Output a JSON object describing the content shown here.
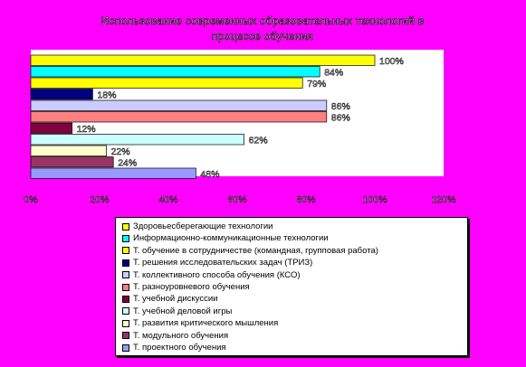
{
  "chart_data": {
    "type": "bar",
    "orientation": "horizontal",
    "title_line1": "Использование современных образовательных технологий в",
    "title_line2": "процессе обучения",
    "xlim": [
      0,
      120
    ],
    "xticks": [
      "0%",
      "20%",
      "40%",
      "60%",
      "80%",
      "100%",
      "120%"
    ],
    "grid": false,
    "legend_position": "bottom",
    "series": [
      {
        "name": "Здоровьесберегающие технологии",
        "value": 100,
        "label": "100%",
        "color": "#ffff00"
      },
      {
        "name": "Информационно-коммуникационные технологии",
        "value": 84,
        "label": "84%",
        "color": "#00ffff"
      },
      {
        "name": "Т. обучение в сотрудничестве (командная, групповая работа)",
        "value": 79,
        "label": "79%",
        "color": "#ffff00"
      },
      {
        "name": "Т. решения исследовательских задач (ТРИЗ)",
        "value": 18,
        "label": "18%",
        "color": "#000080"
      },
      {
        "name": "Т. коллективного способа обучения (КСО)",
        "value": 86,
        "label": "86%",
        "color": "#ccccff"
      },
      {
        "name": "Т. разноуровневого обучения",
        "value": 86,
        "label": "86%",
        "color": "#ff8080"
      },
      {
        "name": "Т. учебной дискуссии",
        "value": 12,
        "label": "12%",
        "color": "#800040"
      },
      {
        "name": "Т. учебной деловой игры",
        "value": 62,
        "label": "62%",
        "color": "#ccffff"
      },
      {
        "name": "Т. развития критического мышления",
        "value": 22,
        "label": "22%",
        "color": "#ffffcc"
      },
      {
        "name": "Т. модульного обучения",
        "value": 24,
        "label": "24%",
        "color": "#993366"
      },
      {
        "name": "Т. проектного обучения",
        "value": 48,
        "label": "48%",
        "color": "#9999ff"
      }
    ]
  }
}
